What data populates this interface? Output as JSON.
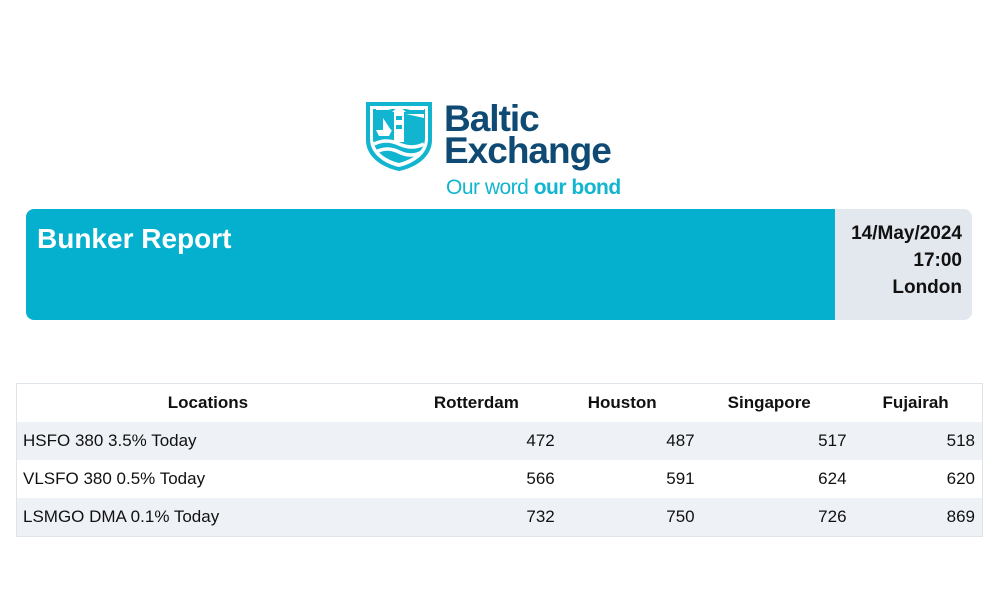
{
  "logo": {
    "word1": "Baltic",
    "word2": "Exchange",
    "tagline_light": "Our word ",
    "tagline_bold": "our bond"
  },
  "header": {
    "title": "Bunker Report",
    "date": "14/May/2024",
    "time": "17:00",
    "location": "London"
  },
  "table": {
    "headers": [
      "Locations",
      "Rotterdam",
      "Houston",
      "Singapore",
      "Fujairah"
    ],
    "rows": [
      {
        "label": "HSFO 380 3.5% Today",
        "values": [
          "472",
          "487",
          "517",
          "518"
        ]
      },
      {
        "label": "VLSFO 380 0.5% Today",
        "values": [
          "566",
          "591",
          "624",
          "620"
        ]
      },
      {
        "label": "LSMGO DMA 0.1% Today",
        "values": [
          "732",
          "750",
          "726",
          "869"
        ]
      }
    ]
  },
  "colors": {
    "brand_teal": "#05b0ce",
    "brand_navy": "#0e4a73",
    "side_panel": "#e3e7ee",
    "row_stripe": "#eef2f7"
  }
}
